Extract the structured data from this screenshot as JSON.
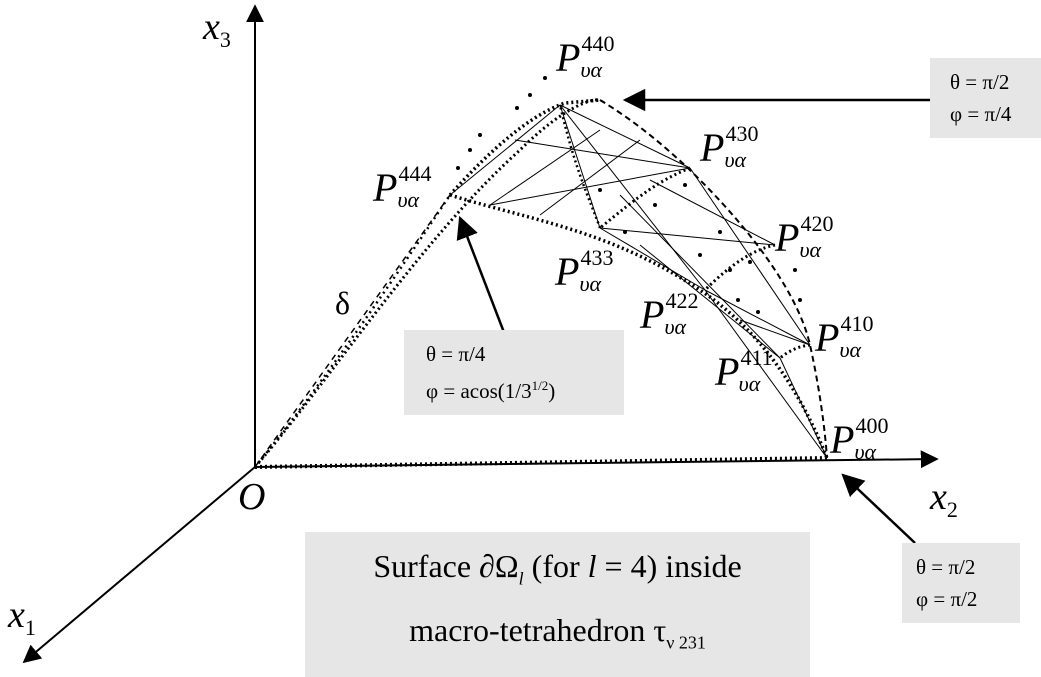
{
  "axes": {
    "x3_base": "x",
    "x3_sub": "3",
    "x2_base": "x",
    "x2_sub": "2",
    "x1_base": "x",
    "x1_sub": "1",
    "origin": "O"
  },
  "delta": "δ",
  "points": [
    {
      "id": "440",
      "base": "P",
      "sub": "υα",
      "sup": "440"
    },
    {
      "id": "430",
      "base": "P",
      "sub": "υα",
      "sup": "430"
    },
    {
      "id": "444",
      "base": "P",
      "sub": "υα",
      "sup": "444"
    },
    {
      "id": "420",
      "base": "P",
      "sub": "υα",
      "sup": "420"
    },
    {
      "id": "433",
      "base": "P",
      "sub": "υα",
      "sup": "433"
    },
    {
      "id": "422",
      "base": "P",
      "sub": "υα",
      "sup": "422"
    },
    {
      "id": "410",
      "base": "P",
      "sub": "υα",
      "sup": "410"
    },
    {
      "id": "411",
      "base": "P",
      "sub": "υα",
      "sup": "411"
    },
    {
      "id": "400",
      "base": "P",
      "sub": "υα",
      "sup": "400"
    }
  ],
  "boxes": {
    "top_right": {
      "line1": "θ = π/2",
      "line2": "φ = π/4"
    },
    "middle": {
      "line1": "θ = π/4",
      "line2_prefix": "φ = acos(1/3",
      "line2_sup": "1/2",
      "line2_suffix": ")"
    },
    "bottom_right": {
      "line1": "θ = π/2",
      "line2": "φ = π/2"
    },
    "caption": {
      "l1_a": "Surface ∂Ω",
      "l1_sub": "l",
      "l1_b": " (for ",
      "l1_var": "l",
      "l1_c": " = 4) inside",
      "l2_a": "macro-tetrahedron τ",
      "l2_sub": "ν 231"
    }
  }
}
